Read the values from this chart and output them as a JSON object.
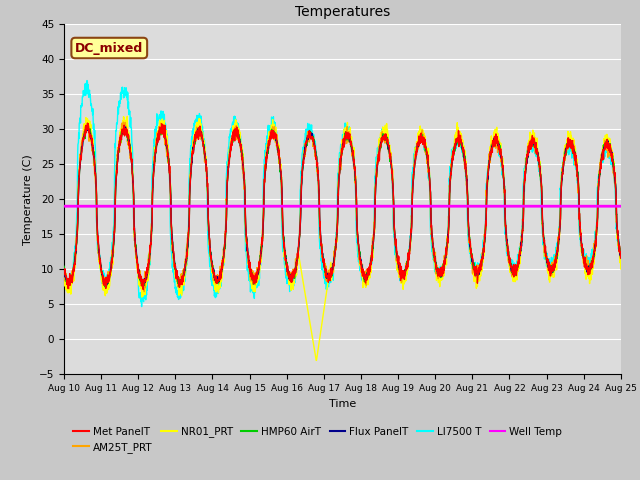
{
  "title": "Temperatures",
  "xlabel": "Time",
  "ylabel": "Temperature (C)",
  "ylim": [
    -5,
    45
  ],
  "xlim": [
    0,
    15
  ],
  "x_tick_labels": [
    "Aug 10",
    "Aug 11",
    "Aug 12",
    "Aug 13",
    "Aug 14",
    "Aug 15",
    "Aug 16",
    "Aug 17",
    "Aug 18",
    "Aug 19",
    "Aug 20",
    "Aug 21",
    "Aug 22",
    "Aug 23",
    "Aug 24",
    "Aug 25"
  ],
  "annotation_text": "DC_mixed",
  "annotation_color": "#8B0000",
  "annotation_bg": "#FFFF99",
  "annotation_border": "#8B4513",
  "well_temp_value": 19.0,
  "series_colors": {
    "MetPanelT": "#FF0000",
    "AM25T_PRT": "#FFA500",
    "NR01_PRT": "#FFFF00",
    "HMP60AirT": "#00CC00",
    "FluxPanelT": "#00008B",
    "LI7500T": "#00FFFF",
    "WellTemp": "#FF00FF"
  },
  "legend_labels": [
    "Met PanelT",
    "AM25T_PRT",
    "NR01_PRT",
    "HMP60 AirT",
    "Flux PanelT",
    "LI7500 T",
    "Well Temp"
  ],
  "bg_color": "#DCDCDC",
  "grid_color": "#FFFFFF",
  "fig_bg": "#C8C8C8"
}
